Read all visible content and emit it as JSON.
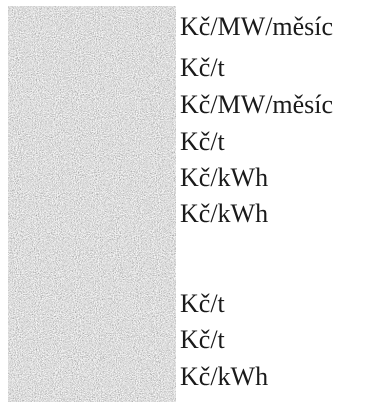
{
  "units": [
    "Kč/MW/měsíc",
    "Kč/t",
    "Kč/MW/měsíc",
    "Kč/t",
    "Kč/kWh",
    "Kč/kWh",
    "",
    "Kč/t",
    "Kč/t",
    "Kč/kWh"
  ],
  "noise_colors": {
    "dark": "#2a2a2a",
    "mid": "#8a8a8a",
    "light": "#f4f4f4"
  }
}
